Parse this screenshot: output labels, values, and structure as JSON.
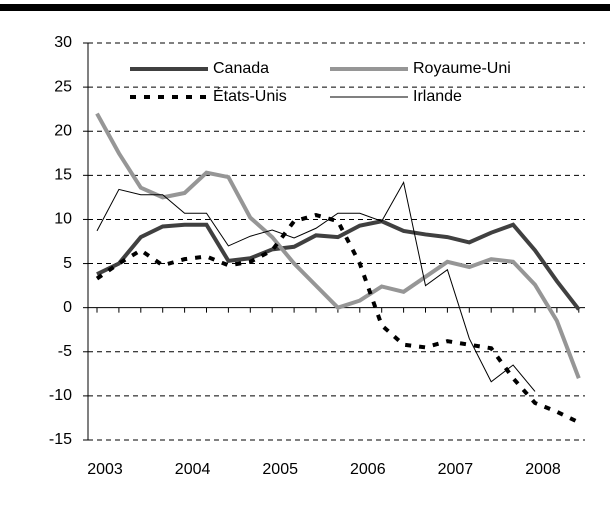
{
  "chart_data": {
    "type": "line",
    "categories": [
      "2003",
      null,
      null,
      null,
      "2004",
      null,
      null,
      null,
      "2005",
      null,
      null,
      null,
      "2006",
      null,
      null,
      null,
      "2007",
      null,
      null,
      null,
      "2008",
      null,
      null
    ],
    "series": [
      {
        "name": "Canada",
        "color": "#404040",
        "width": 4,
        "dash": "none",
        "values": [
          3.8,
          5,
          8,
          9.2,
          9.4,
          9.4,
          5.3,
          5.6,
          6.6,
          6.9,
          8.2,
          8.0,
          9.3,
          9.8,
          8.7,
          8.3,
          8.0,
          7.4,
          8.5,
          9.4,
          6.5,
          3,
          -0.2
        ]
      },
      {
        "name": "Royaume-Uni",
        "color": "#969696",
        "width": 4,
        "dash": "none",
        "values": [
          22,
          17.5,
          13.6,
          12.5,
          13,
          15.3,
          14.8,
          10.2,
          8,
          5,
          2.5,
          0,
          0.8,
          2.4,
          1.8,
          3.5,
          5.2,
          4.6,
          5.5,
          5.2,
          2.6,
          -1.5,
          -8
        ]
      },
      {
        "name": "États-Unis",
        "color": "#000000",
        "width": 4,
        "dash": "6,8",
        "values": [
          3.3,
          5,
          6.5,
          4.8,
          5.5,
          5.8,
          4.8,
          5.2,
          6.5,
          9.8,
          10.5,
          9.8,
          5,
          -2,
          -4.2,
          -4.5,
          -3.8,
          -4.2,
          -4.6,
          -8,
          -10.8,
          -11.8,
          -13
        ]
      },
      {
        "name": "Irlande",
        "color": "#000000",
        "width": 1,
        "dash": "none",
        "values": [
          8.7,
          13.4,
          12.8,
          12.8,
          10.7,
          10.7,
          7,
          8.1,
          8.8,
          7.9,
          9,
          10.7,
          10.7,
          9.8,
          14.2,
          2.5,
          4.3,
          -3.5,
          -8.4,
          -6.5,
          -9.5,
          null,
          null
        ]
      }
    ],
    "ylim": [
      -15,
      30
    ],
    "yticks": [
      -15,
      -10,
      -5,
      0,
      5,
      10,
      15,
      20,
      25,
      30
    ],
    "grid": true
  }
}
